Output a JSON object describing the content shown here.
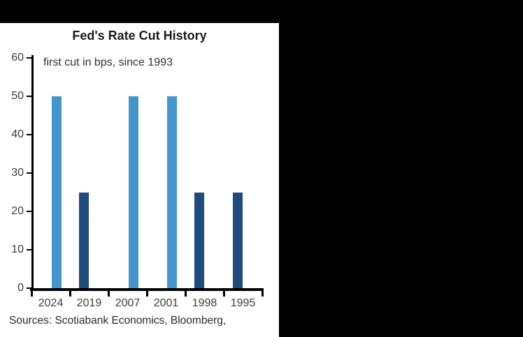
{
  "window": {
    "top_band_color": "#000000",
    "right_panel_color": "#000000",
    "panel_color": "#ffffff"
  },
  "colors": {
    "light_blue_bar": "#4495CB",
    "dark_navy_bar": "#1F4B7E",
    "axis": "#000000",
    "tick_label": "#3d3d3d",
    "title_text": "#1a1a1a"
  },
  "chart_data": {
    "type": "bar",
    "title": "Fed's Rate Cut History",
    "subtitle": "first cut in bps, since 1993",
    "categories": [
      "2024",
      "2019",
      "2007",
      "2001",
      "1998",
      "1995"
    ],
    "values": [
      50,
      25,
      50,
      50,
      25,
      25
    ],
    "bar_colors": [
      "#4495CB",
      "#1F4B7E",
      "#4495CB",
      "#4495CB",
      "#1F4B7E",
      "#1F4B7E"
    ],
    "bar_offsets": [
      8,
      -8,
      8,
      8,
      -8,
      -8
    ],
    "ylim": [
      0,
      60
    ],
    "yticks": [
      0,
      10,
      20,
      30,
      40,
      50,
      60
    ],
    "xlabel": "",
    "ylabel": "",
    "grid": false,
    "legend": "none",
    "source": "Sources: Scotiabank Economics, Bloomberg,"
  }
}
